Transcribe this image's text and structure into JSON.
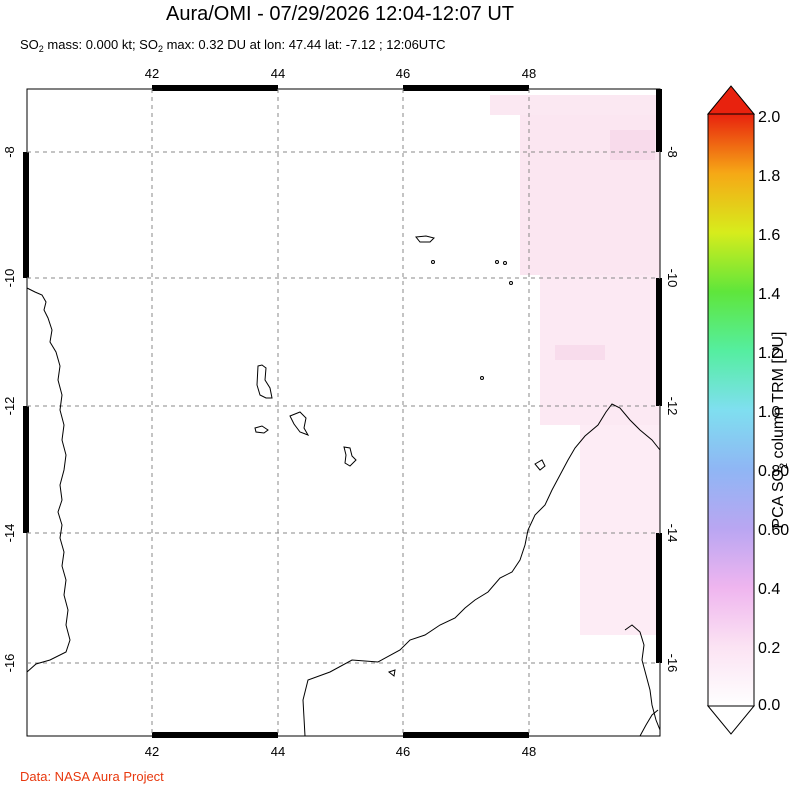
{
  "header": {
    "title": "Aura/OMI - 07/29/2026 12:04-12:07 UT",
    "subtitle_prefix": "SO",
    "subtitle_sub": "2",
    "subtitle_mid": " mass: 0.000 kt; SO",
    "subtitle_sub2": "2",
    "subtitle_rest": " max: 0.32 DU at lon: 47.44 lat: -7.12 ; 12:06UTC"
  },
  "map": {
    "lon_ticks": [
      "42",
      "44",
      "46",
      "48"
    ],
    "lat_ticks": [
      "-8",
      "-10",
      "-12",
      "-14",
      "-16"
    ],
    "lon_range": [
      40.0,
      50.0
    ],
    "lat_range": [
      -17.0,
      -7.0
    ],
    "grid": true,
    "coastline_color": "#000000",
    "so2_tint_color": "#f7d9ec"
  },
  "colorbar": {
    "title_prefix": "PCA SO",
    "title_sub": "2",
    "title_rest": " column TRM [DU]",
    "labels": [
      "2.0",
      "1.8",
      "1.6",
      "1.4",
      "1.2",
      "1.0",
      "0.80",
      "0.60",
      "0.4",
      "0.2",
      "0.0"
    ],
    "range": [
      0.0,
      2.0
    ],
    "colors": [
      "#ffffff",
      "#f5c6ec",
      "#e3a6f0",
      "#9b9ef0",
      "#7fd6f2",
      "#5ff0d0",
      "#3fe04a",
      "#cfe81a",
      "#f7b715",
      "#f05a0a",
      "#e0110f"
    ]
  },
  "footer": {
    "credit": "Data: NASA Aura Project"
  }
}
